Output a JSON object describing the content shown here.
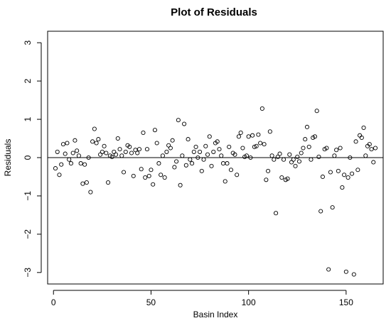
{
  "chart_data": {
    "type": "scatter",
    "title": "Plot of Residuals",
    "xlabel": "Basin Index",
    "ylabel": "Residuals",
    "xlim": [
      -3,
      169
    ],
    "ylim": [
      -3.3,
      3.3
    ],
    "xticks": [
      0,
      50,
      100,
      150
    ],
    "yticks": [
      -3,
      -2,
      -1,
      0,
      1,
      2,
      3
    ],
    "reference_line": {
      "y": 0
    },
    "marker": "open-circle",
    "colors": {
      "points": "#000000",
      "axes": "#000000"
    },
    "x": [
      1,
      2,
      3,
      4,
      5,
      6,
      7,
      8,
      9,
      10,
      11,
      12,
      13,
      14,
      15,
      16,
      17,
      18,
      19,
      20,
      21,
      22,
      23,
      24,
      25,
      26,
      27,
      28,
      29,
      30,
      31,
      32,
      33,
      34,
      35,
      36,
      37,
      38,
      39,
      40,
      41,
      42,
      43,
      44,
      45,
      46,
      47,
      48,
      49,
      50,
      51,
      52,
      53,
      54,
      55,
      56,
      57,
      58,
      59,
      60,
      61,
      62,
      63,
      64,
      65,
      66,
      67,
      68,
      69,
      70,
      71,
      72,
      73,
      74,
      75,
      76,
      77,
      78,
      79,
      80,
      81,
      82,
      83,
      84,
      85,
      86,
      87,
      88,
      89,
      90,
      91,
      92,
      93,
      94,
      95,
      96,
      97,
      98,
      99,
      100,
      101,
      102,
      103,
      104,
      105,
      106,
      107,
      108,
      109,
      110,
      111,
      112,
      113,
      114,
      115,
      116,
      117,
      118,
      119,
      120,
      121,
      122,
      123,
      124,
      125,
      126,
      127,
      128,
      129,
      130,
      131,
      132,
      133,
      134,
      135,
      136,
      137,
      138,
      139,
      140,
      141,
      142,
      143,
      144,
      145,
      146,
      147,
      148,
      149,
      150,
      151,
      152,
      153,
      154,
      155,
      156,
      157,
      158,
      159,
      160,
      161,
      162,
      163,
      164,
      165
    ],
    "y": [
      -0.28,
      0.15,
      -0.45,
      -0.18,
      0.35,
      0.1,
      0.38,
      -0.05,
      -0.15,
      0.12,
      0.45,
      0.18,
      0.05,
      -0.15,
      -0.68,
      -0.18,
      -0.65,
      0.0,
      -0.9,
      0.42,
      0.75,
      0.38,
      0.48,
      0.08,
      0.15,
      0.3,
      0.12,
      -0.65,
      0.05,
      0.02,
      0.15,
      0.08,
      0.5,
      0.22,
      0.05,
      -0.38,
      0.15,
      0.32,
      0.28,
      0.12,
      -0.48,
      0.2,
      0.12,
      0.22,
      -0.3,
      0.65,
      -0.52,
      0.22,
      -0.48,
      -0.32,
      -0.7,
      0.72,
      0.38,
      -0.15,
      -0.45,
      0.05,
      -0.52,
      0.15,
      0.32,
      0.25,
      0.45,
      -0.25,
      -0.1,
      0.98,
      -0.72,
      0.05,
      0.88,
      -0.2,
      0.48,
      -0.05,
      -0.15,
      0.15,
      0.28,
      0.0,
      0.15,
      -0.35,
      -0.05,
      0.3,
      0.08,
      0.55,
      -0.22,
      0.15,
      0.38,
      0.42,
      0.22,
      0.05,
      -0.15,
      -0.62,
      -0.15,
      0.28,
      -0.32,
      0.12,
      0.08,
      -0.45,
      0.55,
      0.65,
      0.25,
      0.02,
      0.05,
      0.55,
      0.0,
      0.58,
      0.28,
      0.3,
      0.6,
      0.38,
      1.28,
      0.35,
      -0.58,
      -0.35,
      0.68,
      0.05,
      -0.05,
      -1.45,
      0.02,
      0.1,
      -0.52,
      -0.05,
      -0.58,
      -0.55,
      0.08,
      -0.12,
      -0.05,
      -0.22,
      0.02,
      -0.1,
      0.12,
      0.25,
      0.48,
      0.8,
      0.28,
      -0.05,
      0.52,
      0.55,
      1.22,
      0.02,
      -1.4,
      -0.5,
      0.22,
      0.25,
      -2.92,
      -0.38,
      -1.3,
      0.05,
      0.2,
      -0.35,
      0.25,
      -0.78,
      -0.45,
      -2.98,
      -0.52,
      0.0,
      -0.42,
      -3.05,
      0.42,
      -0.32,
      0.58,
      0.52,
      0.78,
      0.05,
      0.3,
      0.35,
      0.22,
      -0.12,
      0.25
    ]
  }
}
